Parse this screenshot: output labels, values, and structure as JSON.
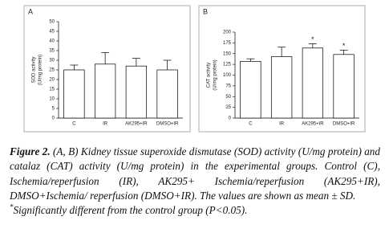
{
  "chart_data": [
    {
      "type": "bar",
      "panel_label": "A",
      "y_label": [
        "SOD activity",
        "(U/mg protein)"
      ],
      "categories": [
        "C",
        "IR",
        "AK295+IR",
        "DMSO+IR"
      ],
      "values": [
        25,
        28,
        27,
        25
      ],
      "errors": [
        2.5,
        6,
        4,
        5
      ],
      "markers": [
        null,
        null,
        null,
        null
      ],
      "color": "#ffffff",
      "ylim": [
        0,
        50
      ],
      "yticks": [
        0,
        5,
        10,
        15,
        20,
        25,
        30,
        35,
        40,
        45,
        50
      ]
    },
    {
      "type": "bar",
      "panel_label": "B",
      "y_label": [
        "CAT activity",
        "(U/mg protein)"
      ],
      "categories": [
        "C",
        "IR",
        "AK295+IR",
        "DMSO+IR"
      ],
      "values": [
        132,
        143,
        163,
        148
      ],
      "errors": [
        6,
        22,
        10,
        10
      ],
      "markers": [
        null,
        null,
        "*",
        "*"
      ],
      "color": "#ffffff",
      "ylim": [
        0,
        200
      ],
      "yticks": [
        0,
        25,
        50,
        75,
        100,
        125,
        150,
        175,
        200
      ]
    }
  ],
  "caption": {
    "label": "Figure 2.",
    "text": "(A, B) Kidney tissue superoxide dismutase (SOD) activity (U/mg protein) and catalaz (CAT) activity (U/mg protein) in the experimental groups. Control (C), Ischemia/reperfusion (IR), AK295+ Ischemia/reperfusion (AK295+IR), DMSO+Ischemia/ reperfusion (DMSO+IR). The values are shown as mean ± SD."
  },
  "footnote": {
    "symbol": "*",
    "text": "Significantly different from the control group (P<0.05)."
  }
}
